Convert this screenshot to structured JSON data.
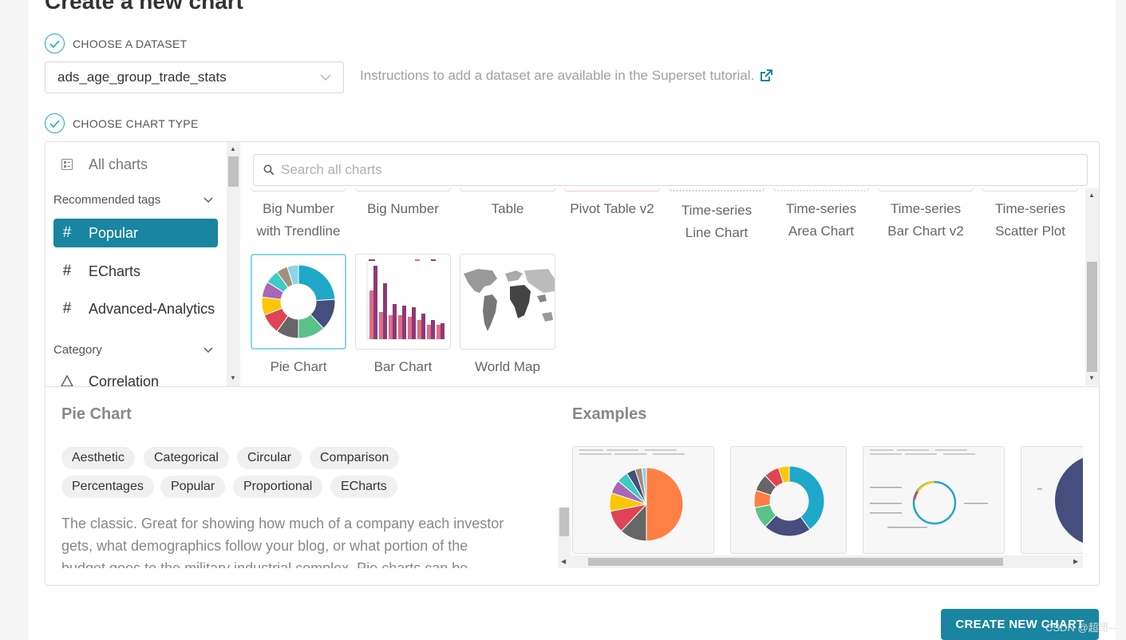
{
  "page": {
    "title": "Create a new chart"
  },
  "steps": {
    "dataset_label": "CHOOSE A DATASET",
    "chart_type_label": "CHOOSE CHART TYPE"
  },
  "dataset": {
    "selected": "ads_age_group_trade_stats",
    "hint": "Instructions to add a dataset are available in the Superset tutorial."
  },
  "sidebar": {
    "all_charts": "All charts",
    "recommended_tags": "Recommended tags",
    "tags": [
      {
        "label": "Popular",
        "active": true
      },
      {
        "label": "ECharts",
        "active": false
      },
      {
        "label": "Advanced-Analytics",
        "active": false
      }
    ],
    "category_heading": "Category",
    "categories": [
      "Correlation"
    ]
  },
  "search": {
    "placeholder": "Search all charts",
    "value": ""
  },
  "gallery": {
    "top_row": [
      [
        "Big Number",
        "with Trendline"
      ],
      [
        "Big Number"
      ],
      [
        "Table"
      ],
      [
        "Pivot Table v2"
      ],
      [
        "Time-series",
        "Line Chart"
      ],
      [
        "Time-series",
        "Area Chart"
      ],
      [
        "Time-series",
        "Bar Chart v2"
      ],
      [
        "Time-series",
        "Scatter Plot"
      ]
    ],
    "second_row": [
      {
        "label": "Pie Chart",
        "selected": true
      },
      {
        "label": "Bar Chart",
        "selected": false
      },
      {
        "label": "World Map",
        "selected": false
      }
    ]
  },
  "detail": {
    "title": "Pie Chart",
    "tags": [
      "Aesthetic",
      "Categorical",
      "Circular",
      "Comparison",
      "Percentages",
      "Popular",
      "Proportional",
      "ECharts"
    ],
    "description": "The classic. Great for showing how much of a company each investor gets, what demographics follow your blog, or what portion of the budget goes to the military industrial complex. Pie charts can be difficult to interpret precisely.",
    "examples_title": "Examples"
  },
  "footer": {
    "create_button": "CREATE NEW CHART",
    "watermark": "CSDN @超哥--"
  },
  "colors": {
    "accent": "#1985a0",
    "check": "#20a7c9",
    "pie": [
      "#1fa8c9",
      "#454e7c",
      "#5ac189",
      "#666666",
      "#e04355",
      "#fcc700",
      "#a868b7",
      "#3cccc4",
      "#a38f79",
      "#8fd3e4"
    ]
  }
}
